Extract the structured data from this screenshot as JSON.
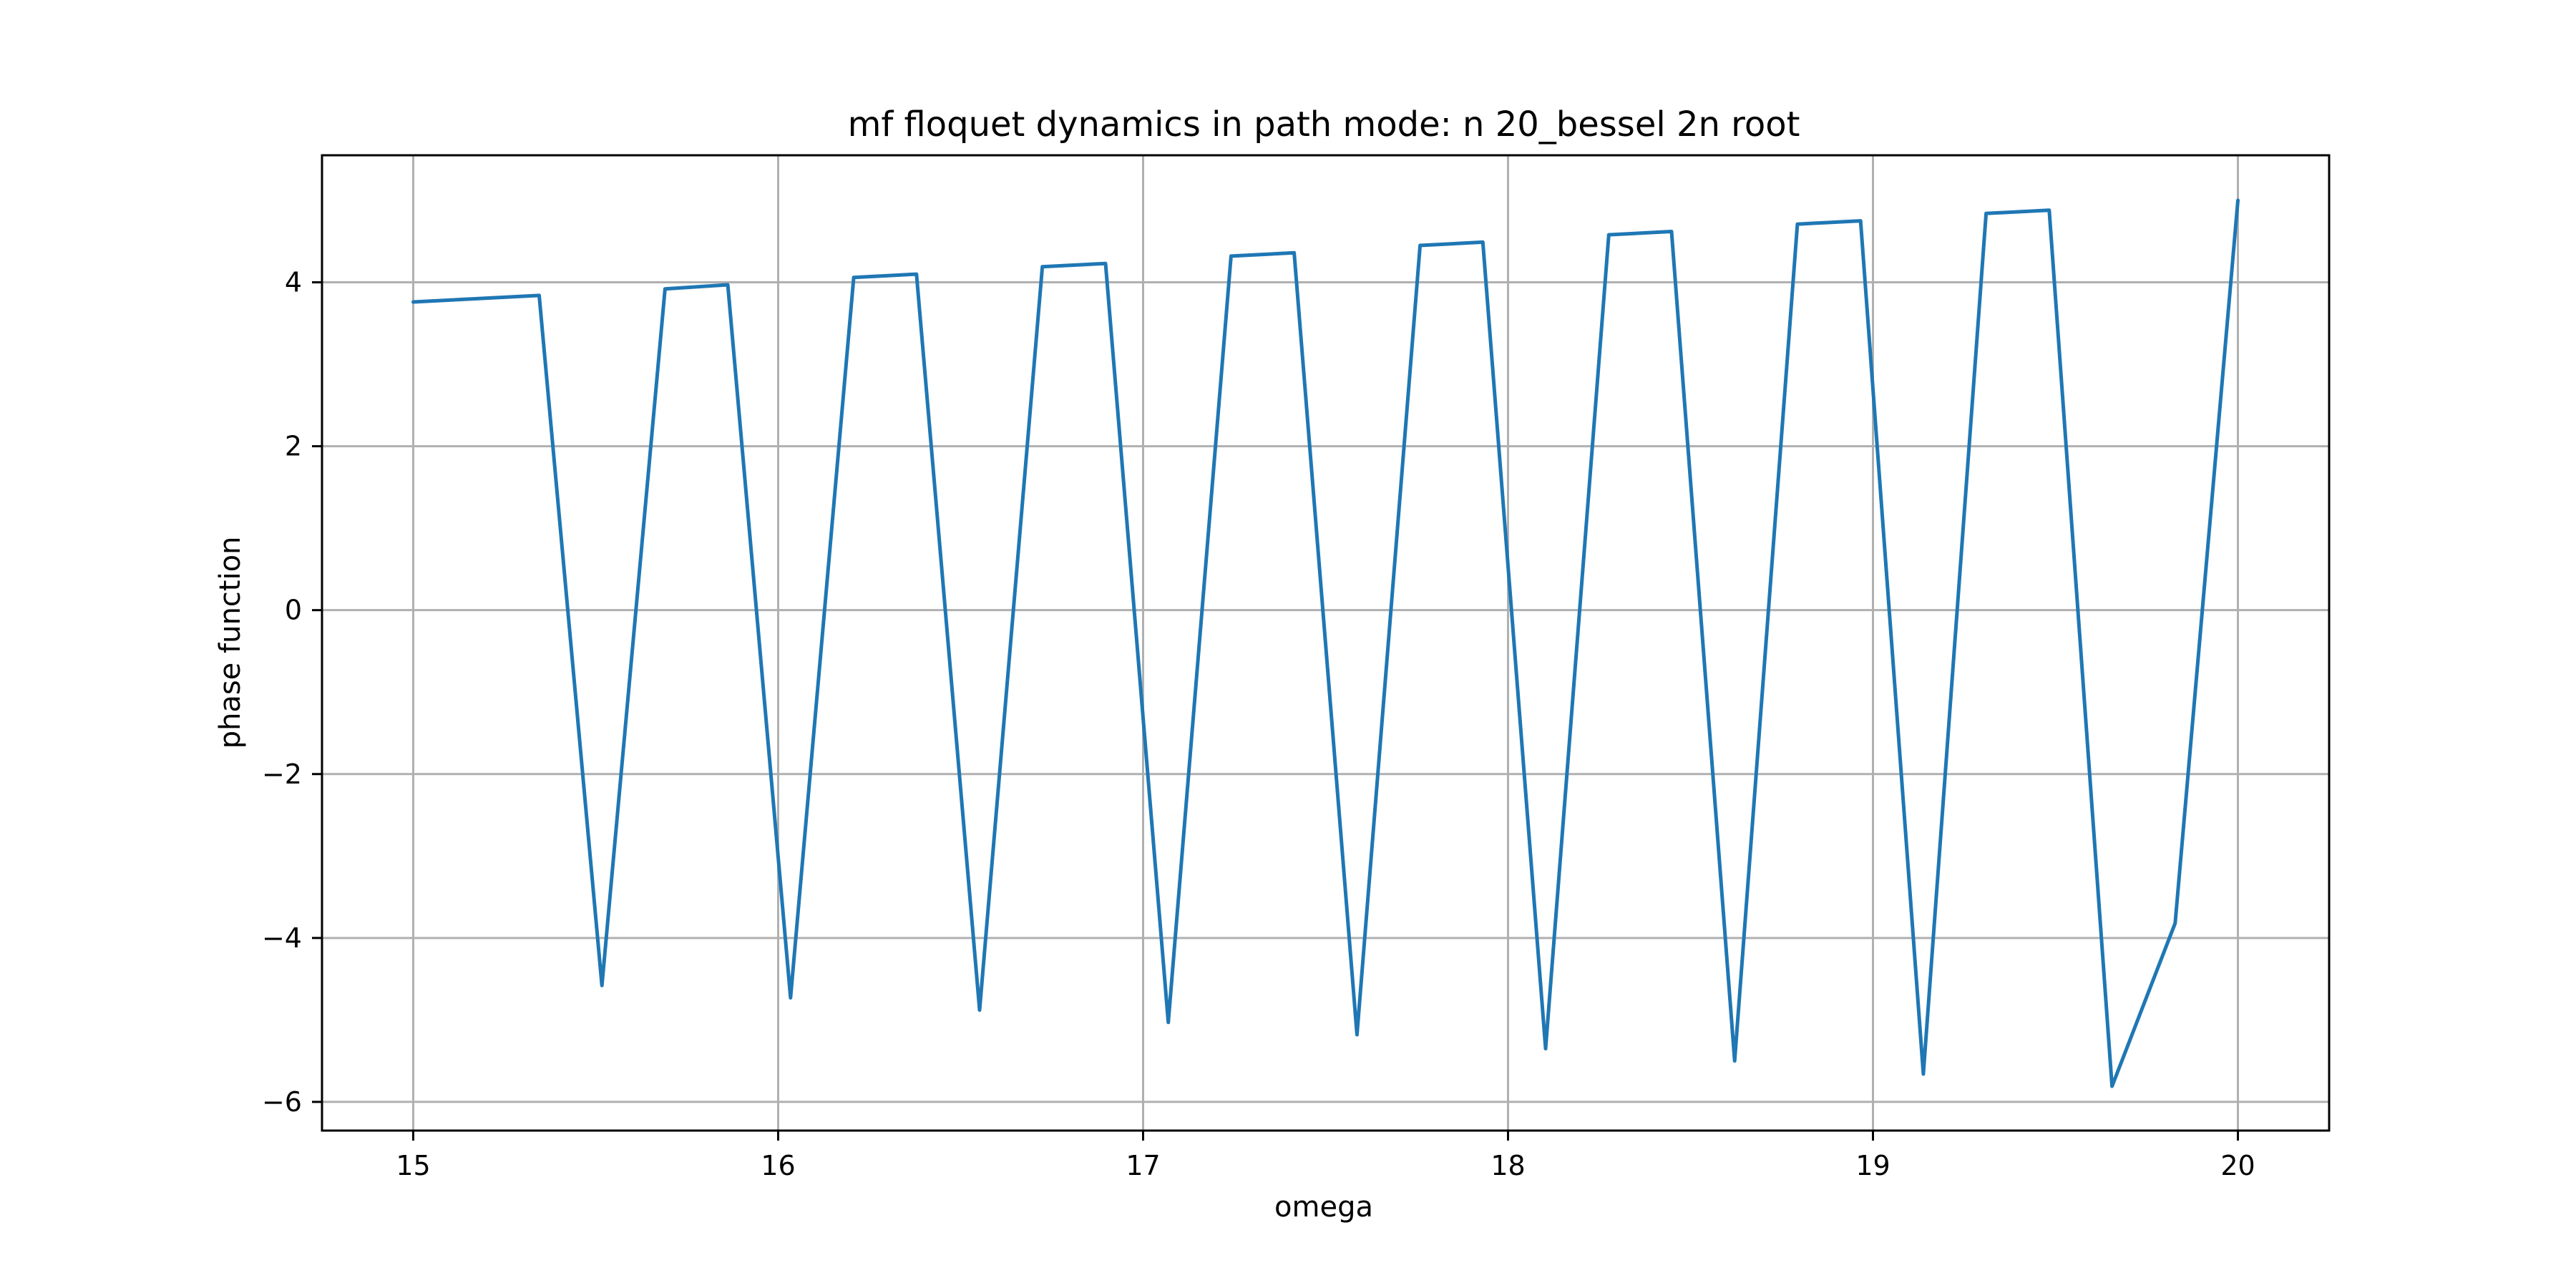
{
  "chart_data": {
    "type": "line",
    "title": "mf floquet dynamics in path mode: n 20_bessel 2n root",
    "xlabel": "omega",
    "ylabel": "phase function",
    "xlim": [
      14.75,
      20.25
    ],
    "ylim": [
      -6.35,
      5.55
    ],
    "xticks": [
      15,
      16,
      17,
      18,
      19,
      20
    ],
    "xtick_labels": [
      "15",
      "16",
      "17",
      "18",
      "19",
      "20"
    ],
    "yticks": [
      -6,
      -4,
      -2,
      0,
      2,
      4
    ],
    "ytick_labels": [
      "−6",
      "−4",
      "−2",
      "0",
      "2",
      "4"
    ],
    "grid": true,
    "series": [
      {
        "name": "phase function",
        "color": "#1f77b4",
        "x": [
          15.0,
          15.345,
          15.517,
          15.69,
          15.862,
          16.034,
          16.207,
          16.379,
          16.552,
          16.724,
          16.897,
          17.069,
          17.241,
          17.414,
          17.586,
          17.759,
          17.931,
          18.103,
          18.276,
          18.448,
          18.621,
          18.793,
          18.966,
          19.138,
          19.31,
          19.483,
          19.655,
          19.828,
          20.0
        ],
        "y": [
          3.76,
          3.84,
          -4.58,
          3.92,
          3.97,
          -4.73,
          4.06,
          4.1,
          -4.88,
          4.19,
          4.23,
          -5.03,
          4.32,
          4.36,
          -5.18,
          4.45,
          4.49,
          -5.35,
          4.58,
          4.62,
          -5.5,
          4.71,
          4.75,
          -5.66,
          4.84,
          4.88,
          -5.81,
          -3.82,
          5.0
        ]
      }
    ]
  }
}
